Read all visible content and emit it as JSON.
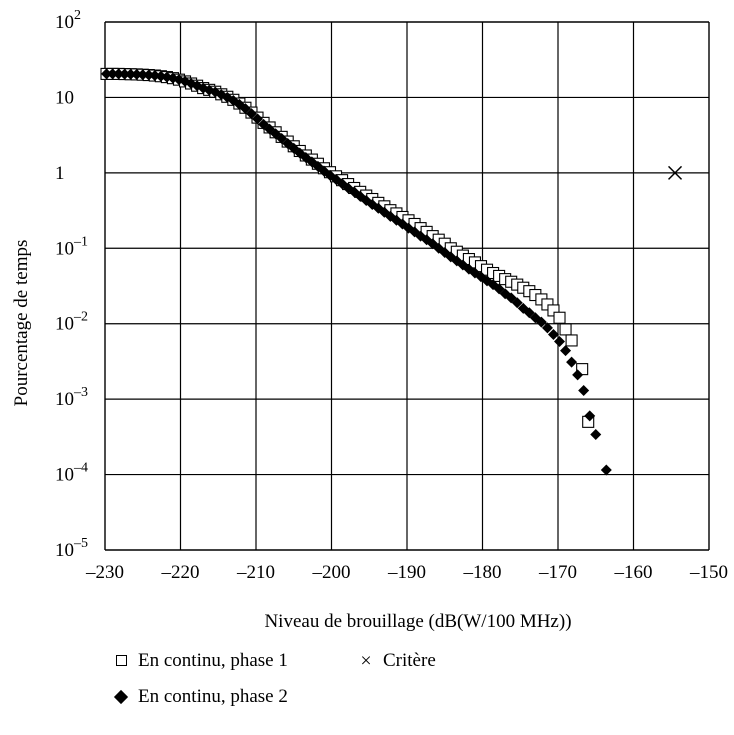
{
  "chart_data": {
    "type": "scatter",
    "title": "",
    "xlabel": "Niveau de brouillage (dB(W/100 MHz))",
    "ylabel": "Pourcentage de temps",
    "xlim": [
      -230,
      -150
    ],
    "ylim": [
      1e-05,
      100
    ],
    "yscale": "log",
    "grid": true,
    "legend_position": "bottom",
    "x_ticks": [
      "–230",
      "–220",
      "–210",
      "–200",
      "–190",
      "–180",
      "–170",
      "–160",
      "–150"
    ],
    "y_ticks": [
      {
        "base": "10",
        "exp": "2"
      },
      {
        "base": "10",
        "exp": ""
      },
      {
        "base": "1",
        "exp": ""
      },
      {
        "base": "10",
        "exp": "–1"
      },
      {
        "base": "10",
        "exp": "–2"
      },
      {
        "base": "10",
        "exp": "–3"
      },
      {
        "base": "10",
        "exp": "–4"
      },
      {
        "base": "10",
        "exp": "–5"
      }
    ],
    "series": [
      {
        "name": "En continu, phase 1",
        "marker": "open-square",
        "color": "#000000",
        "points": [
          [
            -229.8,
            20.5
          ],
          [
            -229.0,
            20.5
          ],
          [
            -228.2,
            20.5
          ],
          [
            -227.4,
            20.4
          ],
          [
            -226.6,
            20.3
          ],
          [
            -225.8,
            20.2
          ],
          [
            -225.0,
            20.0
          ],
          [
            -224.2,
            19.8
          ],
          [
            -223.4,
            19.5
          ],
          [
            -222.6,
            19.1
          ],
          [
            -221.8,
            18.6
          ],
          [
            -221.0,
            18.0
          ],
          [
            -220.2,
            17.2
          ],
          [
            -219.4,
            16.3
          ],
          [
            -218.6,
            15.3
          ],
          [
            -217.8,
            14.3
          ],
          [
            -217.0,
            13.3
          ],
          [
            -216.2,
            12.6
          ],
          [
            -215.4,
            11.9
          ],
          [
            -214.6,
            11.0
          ],
          [
            -213.8,
            10.2
          ],
          [
            -213.0,
            9.3
          ],
          [
            -212.2,
            8.3
          ],
          [
            -211.4,
            7.3
          ],
          [
            -210.6,
            6.3
          ],
          [
            -209.8,
            5.4
          ],
          [
            -209.0,
            4.6
          ],
          [
            -208.2,
            4.0
          ],
          [
            -207.4,
            3.45
          ],
          [
            -206.6,
            3.0
          ],
          [
            -205.8,
            2.6
          ],
          [
            -205.0,
            2.25
          ],
          [
            -204.2,
            1.95
          ],
          [
            -203.4,
            1.7
          ],
          [
            -202.6,
            1.5
          ],
          [
            -201.8,
            1.32
          ],
          [
            -201.0,
            1.15
          ],
          [
            -200.2,
            1.02
          ],
          [
            -199.4,
            0.9
          ],
          [
            -198.6,
            0.8
          ],
          [
            -197.8,
            0.71
          ],
          [
            -197.0,
            0.63
          ],
          [
            -196.2,
            0.56
          ],
          [
            -195.4,
            0.5
          ],
          [
            -194.6,
            0.45
          ],
          [
            -193.8,
            0.4
          ],
          [
            -193.0,
            0.36
          ],
          [
            -192.2,
            0.32
          ],
          [
            -191.4,
            0.29
          ],
          [
            -190.6,
            0.26
          ],
          [
            -189.8,
            0.235
          ],
          [
            -189.0,
            0.21
          ],
          [
            -188.2,
            0.185
          ],
          [
            -187.4,
            0.165
          ],
          [
            -186.6,
            0.145
          ],
          [
            -185.8,
            0.13
          ],
          [
            -185.0,
            0.115
          ],
          [
            -184.2,
            0.1
          ],
          [
            -183.4,
            0.09
          ],
          [
            -182.6,
            0.08
          ],
          [
            -181.8,
            0.072
          ],
          [
            -181.0,
            0.065
          ],
          [
            -180.2,
            0.058
          ],
          [
            -179.4,
            0.052
          ],
          [
            -178.6,
            0.047
          ],
          [
            -177.8,
            0.043
          ],
          [
            -177.0,
            0.039
          ],
          [
            -176.2,
            0.036
          ],
          [
            -175.4,
            0.033
          ],
          [
            -174.6,
            0.03
          ],
          [
            -173.8,
            0.027
          ],
          [
            -173.0,
            0.024
          ],
          [
            -172.2,
            0.021
          ],
          [
            -171.4,
            0.018
          ],
          [
            -170.6,
            0.015
          ],
          [
            -169.8,
            0.012
          ],
          [
            -169.0,
            0.0084
          ],
          [
            -168.2,
            0.006
          ],
          [
            -166.8,
            0.0025
          ],
          [
            -166.0,
            0.0005
          ]
        ]
      },
      {
        "name": "En continu, phase 2",
        "marker": "filled-diamond",
        "color": "#000000",
        "points": [
          [
            -229.8,
            20.5
          ],
          [
            -229.0,
            20.5
          ],
          [
            -228.2,
            20.5
          ],
          [
            -227.4,
            20.4
          ],
          [
            -226.6,
            20.3
          ],
          [
            -225.8,
            20.2
          ],
          [
            -225.0,
            20.0
          ],
          [
            -224.2,
            19.8
          ],
          [
            -223.4,
            19.5
          ],
          [
            -222.6,
            19.1
          ],
          [
            -221.8,
            18.6
          ],
          [
            -221.0,
            18.0
          ],
          [
            -220.2,
            17.2
          ],
          [
            -219.4,
            16.3
          ],
          [
            -218.6,
            15.3
          ],
          [
            -217.8,
            14.3
          ],
          [
            -217.0,
            13.3
          ],
          [
            -216.2,
            12.5
          ],
          [
            -215.4,
            11.8
          ],
          [
            -214.6,
            10.9
          ],
          [
            -213.8,
            10.0
          ],
          [
            -213.0,
            9.1
          ],
          [
            -212.2,
            8.1
          ],
          [
            -211.4,
            7.1
          ],
          [
            -210.6,
            6.1
          ],
          [
            -209.8,
            5.2
          ],
          [
            -209.0,
            4.4
          ],
          [
            -208.2,
            3.8
          ],
          [
            -207.4,
            3.3
          ],
          [
            -206.6,
            2.85
          ],
          [
            -205.8,
            2.45
          ],
          [
            -205.0,
            2.12
          ],
          [
            -204.2,
            1.83
          ],
          [
            -203.4,
            1.6
          ],
          [
            -202.6,
            1.4
          ],
          [
            -201.8,
            1.22
          ],
          [
            -201.0,
            1.06
          ],
          [
            -200.2,
            0.93
          ],
          [
            -199.4,
            0.82
          ],
          [
            -198.6,
            0.72
          ],
          [
            -197.8,
            0.63
          ],
          [
            -197.0,
            0.56
          ],
          [
            -196.2,
            0.49
          ],
          [
            -195.4,
            0.43
          ],
          [
            -194.6,
            0.38
          ],
          [
            -193.8,
            0.34
          ],
          [
            -193.0,
            0.3
          ],
          [
            -192.2,
            0.265
          ],
          [
            -191.4,
            0.235
          ],
          [
            -190.6,
            0.21
          ],
          [
            -189.8,
            0.185
          ],
          [
            -189.0,
            0.165
          ],
          [
            -188.2,
            0.145
          ],
          [
            -187.4,
            0.13
          ],
          [
            -186.6,
            0.115
          ],
          [
            -185.8,
            0.1
          ],
          [
            -185.0,
            0.088
          ],
          [
            -184.2,
            0.077
          ],
          [
            -183.4,
            0.068
          ],
          [
            -182.6,
            0.06
          ],
          [
            -181.8,
            0.053
          ],
          [
            -181.0,
            0.047
          ],
          [
            -180.2,
            0.042
          ],
          [
            -179.4,
            0.037
          ],
          [
            -178.6,
            0.033
          ],
          [
            -177.8,
            0.029
          ],
          [
            -177.0,
            0.025
          ],
          [
            -176.2,
            0.022
          ],
          [
            -175.4,
            0.019
          ],
          [
            -174.6,
            0.016
          ],
          [
            -173.8,
            0.014
          ],
          [
            -173.0,
            0.012
          ],
          [
            -172.2,
            0.0105
          ],
          [
            -171.4,
            0.0088
          ],
          [
            -170.6,
            0.0072
          ],
          [
            -169.8,
            0.0058
          ],
          [
            -169.0,
            0.0044
          ],
          [
            -168.2,
            0.0031
          ],
          [
            -167.4,
            0.0021
          ],
          [
            -166.6,
            0.0013
          ],
          [
            -165.8,
            0.0006
          ],
          [
            -165.0,
            0.00034
          ],
          [
            -163.6,
            0.000115
          ]
        ]
      },
      {
        "name": "Critère",
        "marker": "cross",
        "color": "#000000",
        "points": [
          [
            -154.5,
            1
          ]
        ]
      }
    ]
  },
  "legend": {
    "items": [
      {
        "symbol": "square",
        "label": "En continu, phase 1"
      },
      {
        "symbol": "cross",
        "label": "Critère"
      },
      {
        "symbol": "diamond",
        "label": "En continu, phase 2"
      }
    ]
  }
}
